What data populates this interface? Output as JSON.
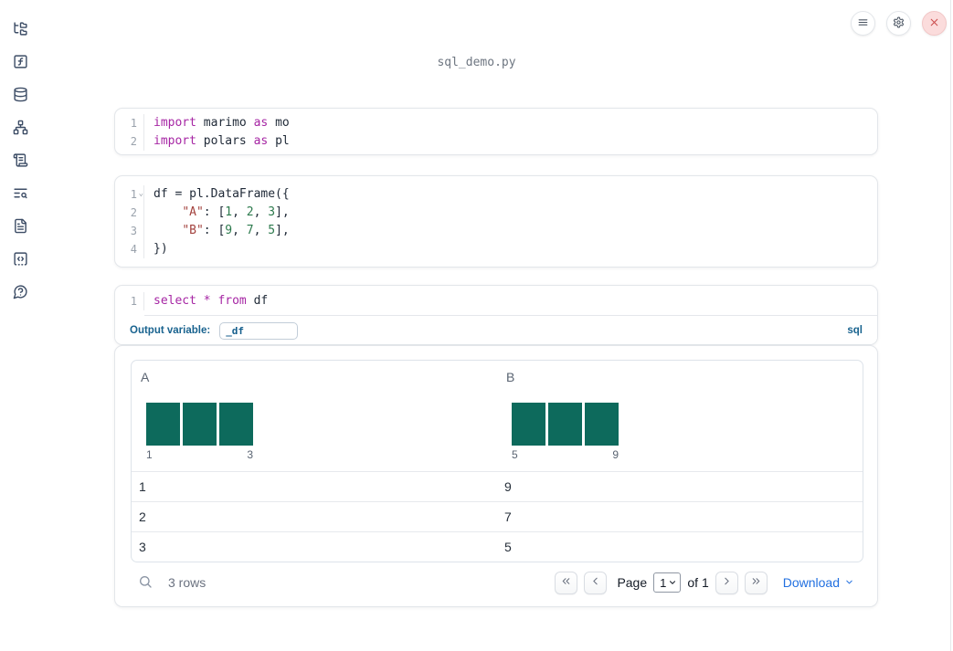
{
  "window": {
    "title": "sql_demo.py"
  },
  "topbar": {
    "buttons": [
      {
        "name": "notebook-menu",
        "icon": "hamburger-icon"
      },
      {
        "name": "settings",
        "icon": "gear-icon"
      },
      {
        "name": "shutdown",
        "icon": "close-icon"
      }
    ]
  },
  "sidebar": {
    "items": [
      {
        "name": "file-explorer",
        "icon": "folder-tree-icon"
      },
      {
        "name": "variables",
        "icon": "function-square-icon"
      },
      {
        "name": "datasources",
        "icon": "database-icon"
      },
      {
        "name": "dependency-graph",
        "icon": "network-icon"
      },
      {
        "name": "outline",
        "icon": "scroll-icon"
      },
      {
        "name": "logs",
        "icon": "list-search-icon"
      },
      {
        "name": "documentation",
        "icon": "document-icon"
      },
      {
        "name": "snippets",
        "icon": "code-snippet-icon"
      },
      {
        "name": "help",
        "icon": "help-bubble-icon"
      }
    ]
  },
  "icons": {
    "fold": "⌄"
  },
  "cells": [
    {
      "id": "imports",
      "lines": [
        {
          "n": "1",
          "tokens": [
            [
              "kw",
              "import"
            ],
            [
              "pl",
              " marimo "
            ],
            [
              "kw",
              "as"
            ],
            [
              "pl",
              " mo"
            ]
          ]
        },
        {
          "n": "2",
          "tokens": [
            [
              "kw",
              "import"
            ],
            [
              "pl",
              " polars "
            ],
            [
              "kw",
              "as"
            ],
            [
              "pl",
              " pl"
            ]
          ]
        }
      ]
    },
    {
      "id": "dataframe",
      "lines": [
        {
          "n": "1",
          "fold": true,
          "tokens": [
            [
              "pl",
              "df = pl.DataFrame({"
            ]
          ]
        },
        {
          "n": "2",
          "tokens": [
            [
              "pl",
              "    "
            ],
            [
              "str",
              "\"A\""
            ],
            [
              "pl",
              ": ["
            ],
            [
              "num",
              "1"
            ],
            [
              "pl",
              ", "
            ],
            [
              "num",
              "2"
            ],
            [
              "pl",
              ", "
            ],
            [
              "num",
              "3"
            ],
            [
              "pl",
              "],"
            ]
          ]
        },
        {
          "n": "3",
          "tokens": [
            [
              "pl",
              "    "
            ],
            [
              "str",
              "\"B\""
            ],
            [
              "pl",
              ": ["
            ],
            [
              "num",
              "9"
            ],
            [
              "pl",
              ", "
            ],
            [
              "num",
              "7"
            ],
            [
              "pl",
              ", "
            ],
            [
              "num",
              "5"
            ],
            [
              "pl",
              "],"
            ]
          ]
        },
        {
          "n": "4",
          "tokens": [
            [
              "pl",
              "})"
            ]
          ]
        }
      ]
    },
    {
      "id": "sql",
      "lines": [
        {
          "n": "1",
          "tokens": [
            [
              "kw",
              "select"
            ],
            [
              "pl",
              " "
            ],
            [
              "kw",
              "*"
            ],
            [
              "pl",
              " "
            ],
            [
              "kw",
              "from"
            ],
            [
              "pl",
              " df"
            ]
          ]
        }
      ]
    }
  ],
  "sql_cell": {
    "output_variable_label": "Output variable:",
    "output_variable_value": "_df",
    "language_badge": "sql"
  },
  "output": {
    "columns": [
      {
        "name": "A",
        "hist": {
          "bins": [
            1,
            1,
            1
          ],
          "tick_min": "1",
          "tick_max": "3"
        }
      },
      {
        "name": "B",
        "hist": {
          "bins": [
            1,
            1,
            1
          ],
          "tick_min": "5",
          "tick_max": "9"
        }
      }
    ],
    "rows": [
      [
        "1",
        "9"
      ],
      [
        "2",
        "7"
      ],
      [
        "3",
        "5"
      ]
    ],
    "row_count_label": "3 rows",
    "pagination": {
      "page_label": "Page",
      "page_value": "1",
      "of_label": "of 1"
    },
    "download_label": "Download"
  },
  "colors": {
    "keyword": "#a626a4",
    "string": "#a3423e",
    "number": "#2d7a4d",
    "histogram_bar": "#0d6a5c",
    "accent_blue": "#2270e0",
    "label_teal": "#19638f",
    "close_button_bg": "#fbdcdc",
    "close_button_icon": "#cc4f4f"
  }
}
